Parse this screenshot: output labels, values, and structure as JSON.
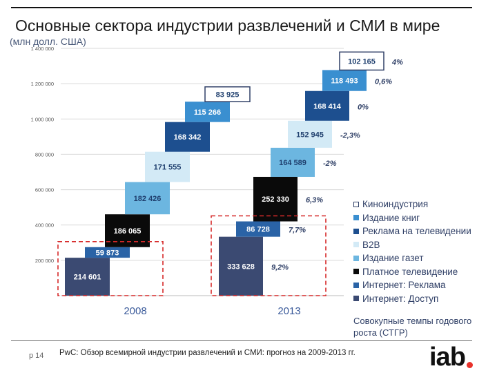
{
  "slide": {
    "title": "Основные сектора индустрии развлечений и СМИ в мире",
    "unit_label": "(млн долл. США)",
    "page_label": "p 14",
    "source": "PwC: Обзор всемирной индустрии развлечений и СМИ: прогноз на 2009-2013 гг.",
    "logo_text": "iab",
    "logo_dot_color": "#e8322b",
    "cagr_note": "Совокупные темпы годового роста (СТГР)"
  },
  "chart_data": {
    "type": "bar",
    "subtype": "stacked-waterfall",
    "title": "Основные сектора индустрии развлечений и СМИ в мире",
    "ylabel": "(млн долл. США)",
    "ylim": [
      0,
      1400000
    ],
    "yticks": [
      200000,
      400000,
      600000,
      800000,
      1000000,
      1200000,
      1400000
    ],
    "ytick_labels": [
      "200 000",
      "400 000",
      "600 000",
      "800 000",
      "1 000 000",
      "1 200 000",
      "1 400 000"
    ],
    "categories": [
      "2008",
      "2013"
    ],
    "series": [
      {
        "name": "Интернет: Доступ",
        "color": "#3b4a72",
        "text_color": "#ffffff",
        "values": [
          214601,
          333628
        ],
        "value_labels": [
          "214 601",
          "333 628"
        ],
        "cagr": "9,2%"
      },
      {
        "name": "Интернет: Реклама",
        "color": "#2a63a6",
        "text_color": "#ffffff",
        "values": [
          59873,
          86728
        ],
        "value_labels": [
          "59 873",
          "86 728"
        ],
        "cagr": "7,7%"
      },
      {
        "name": "Платное телевидение",
        "color": "#0a0a0a",
        "text_color": "#ffffff",
        "values": [
          186065,
          252330
        ],
        "value_labels": [
          "186 065",
          "252 330"
        ],
        "cagr": "6,3%"
      },
      {
        "name": "Издание газет",
        "color": "#6cb6e0",
        "text_color": "#1f3f6e",
        "values": [
          182426,
          164589
        ],
        "value_labels": [
          "182 426",
          "164 589"
        ],
        "cagr": "-2%"
      },
      {
        "name": "B2B",
        "color": "#d3eaf6",
        "text_color": "#1f3f6e",
        "values": [
          171555,
          152945
        ],
        "value_labels": [
          "171 555",
          "152 945"
        ],
        "cagr": "-2,3%"
      },
      {
        "name": "Реклама на телевидении",
        "color": "#1d4f8f",
        "text_color": "#ffffff",
        "values": [
          168342,
          168414
        ],
        "value_labels": [
          "168 342",
          "168 414"
        ],
        "cagr": "0%"
      },
      {
        "name": "Издание книг",
        "color": "#3a8fd0",
        "text_color": "#ffffff",
        "values": [
          115266,
          118493
        ],
        "value_labels": [
          "115 266",
          "118 493"
        ],
        "cagr": "0,6%"
      },
      {
        "name": "Киноиндустрия",
        "color": "#ffffff",
        "text_color": "#1f3f6e",
        "values": [
          83925,
          102165
        ],
        "value_labels": [
          "83 925",
          "102 165"
        ],
        "cagr": "4%"
      }
    ],
    "legend_order": [
      "Киноиндустрия",
      "Издание книг",
      "Реклама на телевидении",
      "B2B",
      "Издание газет",
      "Платное телевидение",
      "Интернет: Реклама",
      "Интернет: Доступ"
    ],
    "highlight_color": "#d62828"
  }
}
